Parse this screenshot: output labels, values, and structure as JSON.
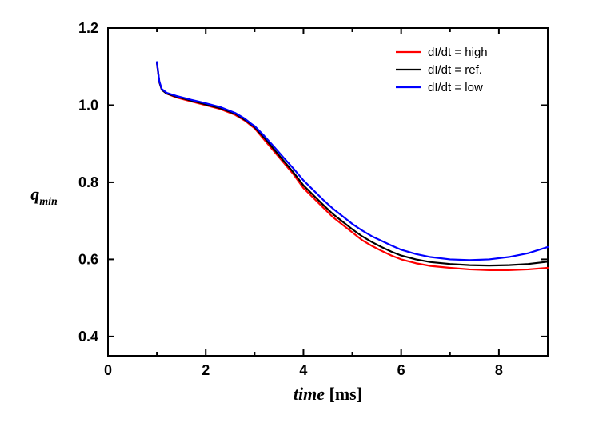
{
  "chart": {
    "type": "line",
    "background_color": "#ffffff",
    "plot_border_color": "#000000",
    "plot_border_width": 2,
    "xlim": [
      0,
      9
    ],
    "ylim": [
      0.35,
      1.2
    ],
    "xticks": [
      0,
      2,
      4,
      6,
      8
    ],
    "yticks": [
      0.4,
      0.6,
      0.8,
      1.0,
      1.2
    ],
    "x_tick_labels": [
      "0",
      "2",
      "4",
      "6",
      "8"
    ],
    "y_tick_labels": [
      "0.4",
      "0.6",
      "0.8",
      "1.0",
      "1.2"
    ],
    "x_minor_step": 1,
    "tick_label_fontsize": 18,
    "axis_title_fontsize": 22,
    "x_axis_label_var": "time",
    "x_axis_label_unit": "[ms]",
    "y_axis_label_main": "q",
    "y_axis_label_sub": "min",
    "tick_length_major": 8,
    "tick_length_minor": 5,
    "tick_width": 2,
    "line_width": 2.2,
    "legend": {
      "fontsize": 15,
      "line_length": 32,
      "position": "upper-right",
      "items": [
        {
          "label": "dI/dt = high",
          "color": "#ff0000"
        },
        {
          "label": "dI/dt = ref.",
          "color": "#000000"
        },
        {
          "label": "dI/dt = low",
          "color": "#0000ff"
        }
      ]
    },
    "series": [
      {
        "name": "high",
        "color": "#ff0000",
        "points": [
          [
            1.0,
            1.11
          ],
          [
            1.05,
            1.06
          ],
          [
            1.1,
            1.04
          ],
          [
            1.2,
            1.03
          ],
          [
            1.4,
            1.02
          ],
          [
            1.7,
            1.01
          ],
          [
            2.0,
            1.0
          ],
          [
            2.3,
            0.99
          ],
          [
            2.6,
            0.975
          ],
          [
            2.8,
            0.96
          ],
          [
            2.95,
            0.945
          ],
          [
            3.0,
            0.94
          ],
          [
            3.2,
            0.91
          ],
          [
            3.4,
            0.88
          ],
          [
            3.6,
            0.85
          ],
          [
            3.8,
            0.82
          ],
          [
            4.0,
            0.785
          ],
          [
            4.2,
            0.76
          ],
          [
            4.4,
            0.735
          ],
          [
            4.6,
            0.71
          ],
          [
            4.8,
            0.69
          ],
          [
            5.0,
            0.67
          ],
          [
            5.2,
            0.65
          ],
          [
            5.4,
            0.635
          ],
          [
            5.6,
            0.622
          ],
          [
            5.8,
            0.61
          ],
          [
            6.0,
            0.6
          ],
          [
            6.3,
            0.59
          ],
          [
            6.6,
            0.583
          ],
          [
            7.0,
            0.578
          ],
          [
            7.4,
            0.574
          ],
          [
            7.8,
            0.572
          ],
          [
            8.2,
            0.572
          ],
          [
            8.6,
            0.574
          ],
          [
            9.0,
            0.578
          ]
        ]
      },
      {
        "name": "ref",
        "color": "#000000",
        "points": [
          [
            1.0,
            1.11
          ],
          [
            1.05,
            1.06
          ],
          [
            1.1,
            1.04
          ],
          [
            1.2,
            1.03
          ],
          [
            1.4,
            1.022
          ],
          [
            1.7,
            1.012
          ],
          [
            2.0,
            1.002
          ],
          [
            2.3,
            0.992
          ],
          [
            2.6,
            0.978
          ],
          [
            2.8,
            0.962
          ],
          [
            2.95,
            0.948
          ],
          [
            3.0,
            0.943
          ],
          [
            3.2,
            0.915
          ],
          [
            3.4,
            0.885
          ],
          [
            3.6,
            0.855
          ],
          [
            3.8,
            0.825
          ],
          [
            4.0,
            0.792
          ],
          [
            4.2,
            0.767
          ],
          [
            4.4,
            0.742
          ],
          [
            4.6,
            0.718
          ],
          [
            4.8,
            0.698
          ],
          [
            5.0,
            0.678
          ],
          [
            5.2,
            0.66
          ],
          [
            5.4,
            0.645
          ],
          [
            5.6,
            0.632
          ],
          [
            5.8,
            0.62
          ],
          [
            6.0,
            0.61
          ],
          [
            6.3,
            0.6
          ],
          [
            6.6,
            0.593
          ],
          [
            7.0,
            0.588
          ],
          [
            7.4,
            0.585
          ],
          [
            7.8,
            0.584
          ],
          [
            8.2,
            0.585
          ],
          [
            8.6,
            0.588
          ],
          [
            9.0,
            0.594
          ]
        ]
      },
      {
        "name": "low",
        "color": "#0000ff",
        "points": [
          [
            1.0,
            1.112
          ],
          [
            1.05,
            1.062
          ],
          [
            1.1,
            1.042
          ],
          [
            1.2,
            1.032
          ],
          [
            1.4,
            1.024
          ],
          [
            1.7,
            1.014
          ],
          [
            2.0,
            1.005
          ],
          [
            2.3,
            0.995
          ],
          [
            2.6,
            0.98
          ],
          [
            2.8,
            0.965
          ],
          [
            2.95,
            0.95
          ],
          [
            3.0,
            0.946
          ],
          [
            3.2,
            0.92
          ],
          [
            3.4,
            0.892
          ],
          [
            3.6,
            0.863
          ],
          [
            3.8,
            0.835
          ],
          [
            4.0,
            0.805
          ],
          [
            4.2,
            0.78
          ],
          [
            4.4,
            0.755
          ],
          [
            4.6,
            0.732
          ],
          [
            4.8,
            0.712
          ],
          [
            5.0,
            0.692
          ],
          [
            5.2,
            0.675
          ],
          [
            5.4,
            0.66
          ],
          [
            5.6,
            0.648
          ],
          [
            5.8,
            0.636
          ],
          [
            6.0,
            0.625
          ],
          [
            6.3,
            0.614
          ],
          [
            6.6,
            0.606
          ],
          [
            7.0,
            0.6
          ],
          [
            7.4,
            0.598
          ],
          [
            7.8,
            0.6
          ],
          [
            8.2,
            0.606
          ],
          [
            8.6,
            0.616
          ],
          [
            9.0,
            0.632
          ]
        ]
      }
    ]
  }
}
